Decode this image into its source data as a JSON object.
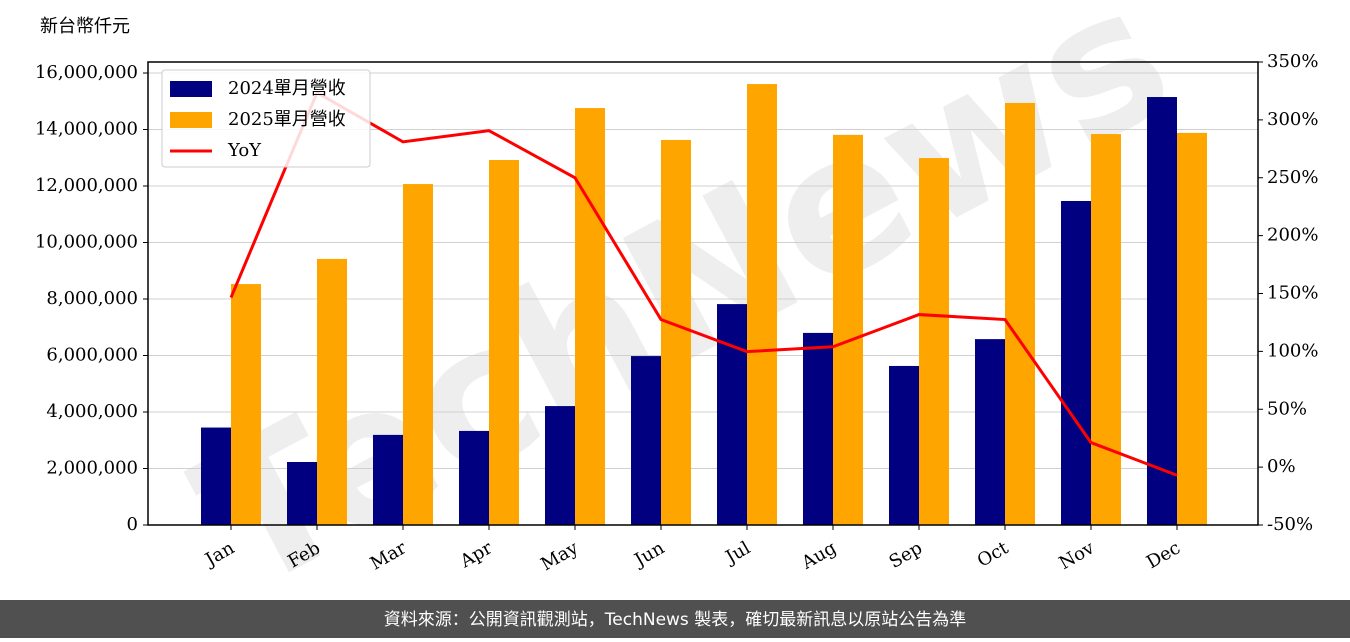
{
  "chart_data": {
    "type": "bar",
    "y_label": "新台幣仟元",
    "watermark": "TechNews",
    "categories": [
      "Jan",
      "Feb",
      "Mar",
      "Apr",
      "May",
      "Jun",
      "Jul",
      "Aug",
      "Sep",
      "Oct",
      "Nov",
      "Dec"
    ],
    "series": [
      {
        "name": "2024單月營收",
        "color": "#000080",
        "values": [
          3450000,
          2230000,
          3190000,
          3330000,
          4210000,
          5980000,
          7820000,
          6800000,
          5630000,
          6580000,
          11470000,
          15150000
        ]
      },
      {
        "name": "2025單月營收",
        "color": "#ffa500",
        "values": [
          8530000,
          9420000,
          12070000,
          12920000,
          14760000,
          13630000,
          15610000,
          13810000,
          12990000,
          14940000,
          13840000,
          13880000
        ]
      },
      {
        "name": "YoY",
        "color": "#ff0000",
        "type": "line",
        "axis": "y2",
        "values": [
          146.5,
          323.5,
          281,
          290.7,
          250,
          127.5,
          99.8,
          104,
          131.8,
          127.5,
          21.2,
          -7
        ]
      }
    ],
    "ylim": [
      0,
      16390000
    ],
    "yticks": [
      0,
      {
        "value": 2000000,
        "label": "2,000,000"
      },
      {
        "value": 4000000,
        "label": "4,000,000"
      },
      {
        "value": 6000000,
        "label": "6,000,000"
      },
      {
        "value": 8000000,
        "label": "8,000,000"
      },
      {
        "value": 10000000,
        "label": "10,000,000"
      },
      {
        "value": 12000000,
        "label": "12,000,000"
      },
      {
        "value": 14000000,
        "label": "14,000,000"
      },
      {
        "value": 16000000,
        "label": "16,000,000"
      }
    ],
    "y2lim": [
      -50,
      350
    ],
    "y2ticks": [
      {
        "value": -50,
        "label": "-50%"
      },
      {
        "value": 0,
        "label": "0%"
      },
      {
        "value": 50,
        "label": "50%"
      },
      {
        "value": 100,
        "label": "100%"
      },
      {
        "value": 150,
        "label": "150%"
      },
      {
        "value": 200,
        "label": "200%"
      },
      {
        "value": 250,
        "label": "250%"
      },
      {
        "value": 300,
        "label": "300%"
      },
      {
        "value": 350,
        "label": "350%"
      }
    ],
    "grid": true,
    "legend": "upper left",
    "source": "資料來源：公開資訊觀測站，TechNews 製表，確切最新訊息以原站公告為準"
  }
}
